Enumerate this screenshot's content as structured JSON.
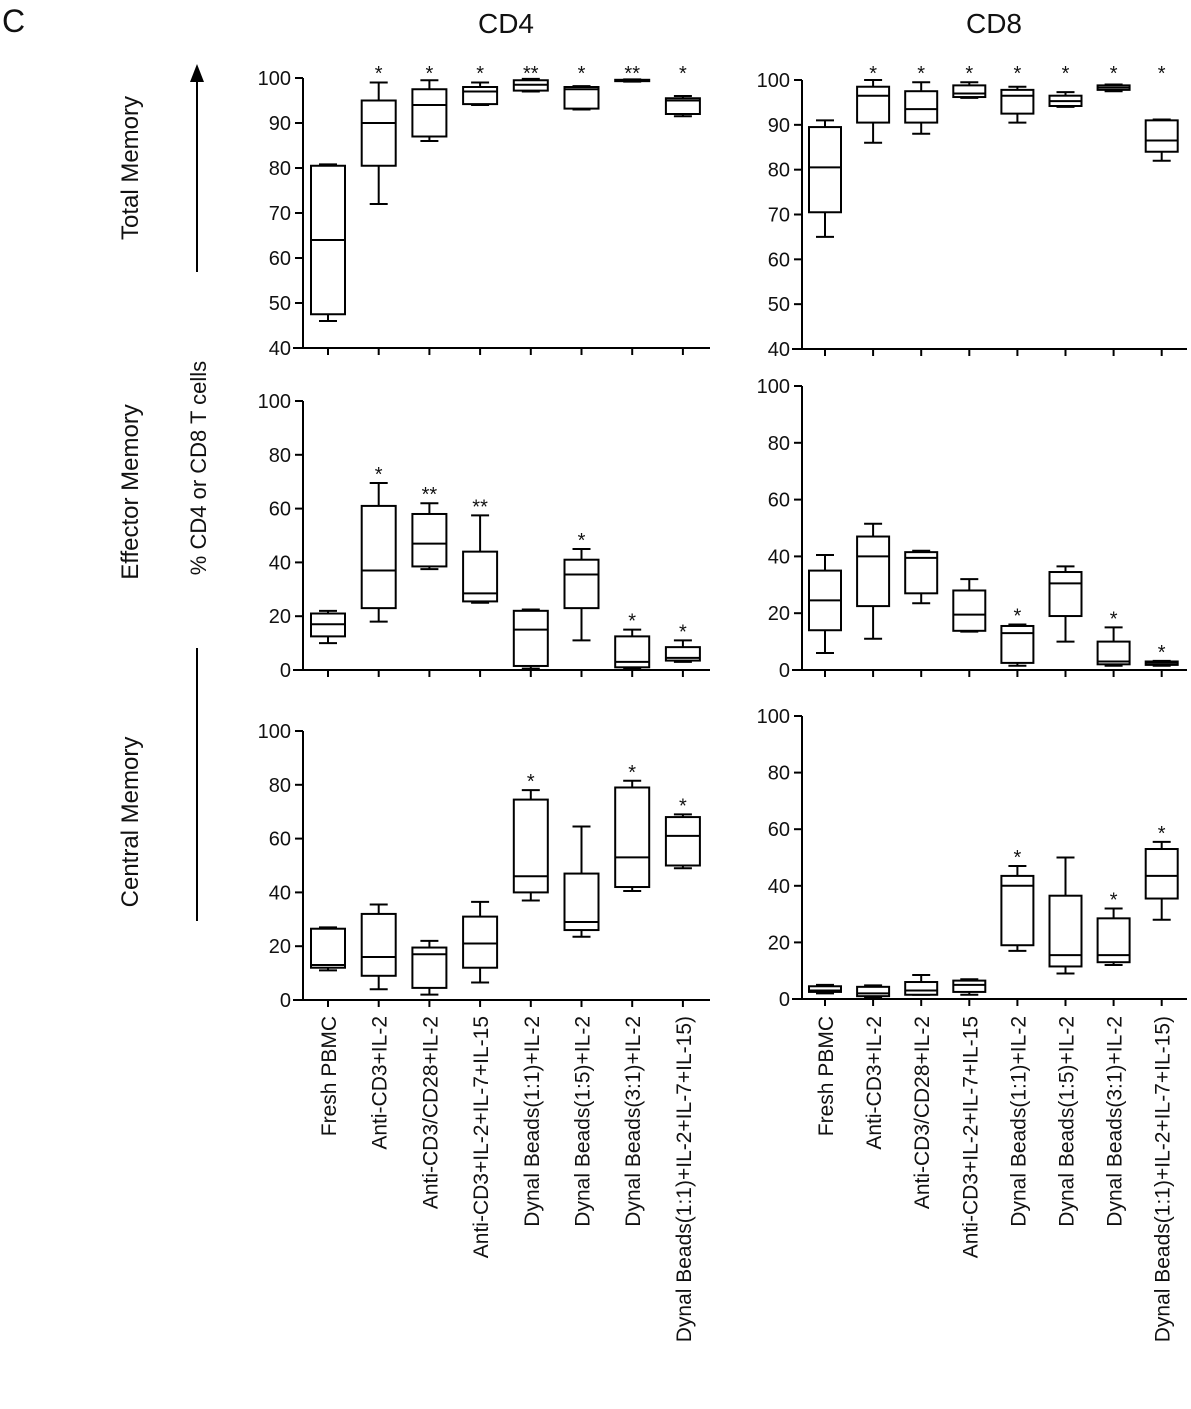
{
  "panel_letter": "C",
  "column_titles": [
    "CD4",
    "CD8"
  ],
  "row_labels": [
    "Total Memory",
    "Effector Memory",
    "Central Memory"
  ],
  "ylabel": "% CD4 or CD8 T cells",
  "categories": [
    "Fresh PBMC",
    "Anti-CD3+IL-2",
    "Anti-CD3/CD28+IL-2",
    "Anti-CD3+IL-2+IL-7+IL-15",
    "Dynal Beads(1:1)+IL-2",
    "Dynal Beads(1:5)+IL-2",
    "Dynal Beads(3:1)+IL-2",
    "Dynal Beads(1:1)+IL-2+IL-7+IL-15)"
  ],
  "chart_data": [
    {
      "type": "box",
      "cell": "CD4",
      "row": "Total Memory",
      "ylim": [
        40,
        100
      ],
      "yticks": [
        40,
        50,
        60,
        70,
        80,
        90,
        100
      ],
      "boxes": [
        [
          46,
          47.5,
          64,
          80.5,
          80.8
        ],
        [
          72,
          80.5,
          90,
          95,
          99
        ],
        [
          86,
          87,
          94,
          97.5,
          99.5
        ],
        [
          94,
          94.2,
          97,
          98,
          99
        ],
        [
          97,
          97.2,
          98.5,
          99.5,
          99.8
        ],
        [
          93,
          93.2,
          97.5,
          98,
          98.2
        ],
        [
          99.2,
          99.3,
          99.5,
          99.6,
          99.7
        ],
        [
          91.5,
          92,
          95,
          95.5,
          96
        ]
      ],
      "significance": [
        "",
        "*",
        "*",
        "*",
        "**",
        "*",
        "**",
        "*"
      ]
    },
    {
      "type": "box",
      "cell": "CD8",
      "row": "Total Memory",
      "ylim": [
        40,
        100
      ],
      "yticks": [
        40,
        50,
        60,
        70,
        80,
        90,
        100
      ],
      "boxes": [
        [
          65,
          70.5,
          80.5,
          89.5,
          91
        ],
        [
          86,
          90.5,
          96.5,
          98.5,
          100
        ],
        [
          88,
          90.5,
          93.5,
          97.5,
          99.5
        ],
        [
          96,
          96.2,
          97,
          98.8,
          99.5
        ],
        [
          90.5,
          92.5,
          96.5,
          97.8,
          98.5
        ],
        [
          94,
          94.2,
          95.3,
          96.5,
          97.3
        ],
        [
          97.5,
          97.8,
          98.3,
          98.8,
          99
        ],
        [
          82,
          84,
          86.5,
          91,
          91.2
        ]
      ],
      "significance": [
        "",
        "*",
        "*",
        "*",
        "*",
        "*",
        "*",
        "*"
      ]
    },
    {
      "type": "box",
      "cell": "CD4",
      "row": "Effector Memory",
      "ylim": [
        0,
        100
      ],
      "yticks": [
        0,
        20,
        40,
        60,
        80,
        100
      ],
      "boxes": [
        [
          10,
          12.5,
          17,
          21,
          22
        ],
        [
          18,
          23,
          37,
          61,
          69.5
        ],
        [
          37.5,
          38.5,
          47,
          58,
          62
        ],
        [
          25,
          25.5,
          28.5,
          44,
          57.5
        ],
        [
          0.5,
          1.5,
          15,
          22,
          22.5
        ],
        [
          11,
          23,
          35.5,
          41,
          45
        ],
        [
          0.5,
          1,
          3,
          12.5,
          15
        ],
        [
          3,
          3.5,
          4.5,
          8.5,
          11
        ]
      ],
      "significance": [
        "",
        "*",
        "**",
        "**",
        "",
        "*",
        "*",
        "*"
      ]
    },
    {
      "type": "box",
      "cell": "CD8",
      "row": "Effector Memory",
      "ylim": [
        0,
        100
      ],
      "yticks": [
        0,
        20,
        40,
        60,
        80,
        100
      ],
      "boxes": [
        [
          6,
          14,
          24.5,
          35,
          40.5
        ],
        [
          11,
          22.5,
          40,
          47,
          51.5
        ],
        [
          23.5,
          27,
          39.5,
          41.5,
          42
        ],
        [
          13.5,
          13.8,
          19.5,
          28,
          32
        ],
        [
          1.5,
          2.5,
          13,
          15.5,
          16
        ],
        [
          10,
          19,
          30.5,
          34.5,
          36.5
        ],
        [
          1.5,
          2,
          3,
          10,
          15
        ],
        [
          1.5,
          1.8,
          2.5,
          3,
          3.2
        ]
      ],
      "significance": [
        "",
        "",
        "",
        "",
        "*",
        "",
        "*",
        "*"
      ]
    },
    {
      "type": "box",
      "cell": "CD4",
      "row": "Central Memory",
      "ylim": [
        0,
        100
      ],
      "yticks": [
        0,
        20,
        40,
        60,
        80,
        100
      ],
      "boxes": [
        [
          11,
          12,
          13,
          26.5,
          27
        ],
        [
          4,
          9,
          16,
          32,
          35.5
        ],
        [
          2,
          4.5,
          17,
          19.5,
          22
        ],
        [
          6.5,
          12,
          21,
          31,
          36.5
        ],
        [
          37,
          40,
          46,
          74.5,
          78
        ],
        [
          23.5,
          26,
          29,
          47,
          64.5
        ],
        [
          40.5,
          42,
          53,
          79,
          81.5
        ],
        [
          49,
          50,
          61,
          68,
          69
        ]
      ],
      "significance": [
        "",
        "",
        "",
        "",
        "*",
        "",
        "*",
        "*"
      ]
    },
    {
      "type": "box",
      "cell": "CD8",
      "row": "Central Memory",
      "ylim": [
        0,
        100
      ],
      "yticks": [
        0,
        20,
        40,
        60,
        80,
        100
      ],
      "boxes": [
        [
          2,
          2.5,
          3,
          4.5,
          5
        ],
        [
          0.5,
          1,
          2,
          4.3,
          4.8
        ],
        [
          1.5,
          1.5,
          3,
          6,
          8.5
        ],
        [
          1.5,
          2.5,
          5,
          6.5,
          7
        ],
        [
          17,
          19,
          40,
          43.5,
          47
        ],
        [
          9,
          11.5,
          15.5,
          36.5,
          50
        ],
        [
          12,
          13,
          15.5,
          28.5,
          32
        ],
        [
          28,
          35.5,
          43.5,
          53,
          55.5
        ]
      ],
      "significance": [
        "",
        "",
        "",
        "",
        "*",
        "",
        "*",
        "*"
      ]
    }
  ]
}
